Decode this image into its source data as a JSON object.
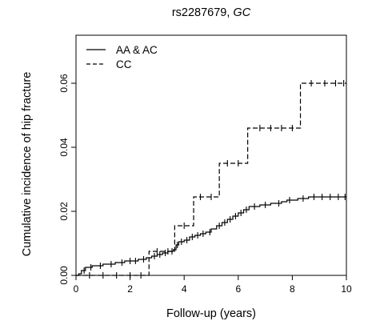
{
  "chart_data": {
    "type": "line",
    "step": true,
    "title_prefix": "rs2287679, ",
    "title_gene": "GC",
    "xlabel": "Follow-up (years)",
    "ylabel": "Cumulative incidence of hip fracture",
    "xlim": [
      0,
      10
    ],
    "ylim": [
      0,
      0.075
    ],
    "xticks": [
      0,
      2,
      4,
      6,
      8,
      10
    ],
    "xtick_labels": [
      "0",
      "2",
      "4",
      "6",
      "8",
      "10"
    ],
    "yticks": [
      0,
      0.02,
      0.04,
      0.06
    ],
    "ytick_labels": [
      "0.00",
      "0.02",
      "0.04",
      "0.06"
    ],
    "grid": false,
    "legend_position": "top-left",
    "series": [
      {
        "name": "AA & AC",
        "line_style": "solid",
        "color": "#000000",
        "x": [
          0,
          0.1,
          0.2,
          0.35,
          0.6,
          1.0,
          1.45,
          1.8,
          2.3,
          2.6,
          2.8,
          3.0,
          3.2,
          3.4,
          3.6,
          3.7,
          3.8,
          4.0,
          4.2,
          4.4,
          4.6,
          4.8,
          5.0,
          5.2,
          5.4,
          5.6,
          5.8,
          6.0,
          6.2,
          6.4,
          6.8,
          7.2,
          7.6,
          7.8,
          8.2,
          8.6,
          10.0
        ],
        "y": [
          0,
          0.0005,
          0.0015,
          0.0025,
          0.003,
          0.0035,
          0.004,
          0.0045,
          0.005,
          0.0055,
          0.006,
          0.0065,
          0.007,
          0.0075,
          0.008,
          0.0095,
          0.0105,
          0.011,
          0.012,
          0.0125,
          0.013,
          0.0135,
          0.0145,
          0.0155,
          0.0165,
          0.0175,
          0.0185,
          0.0195,
          0.0205,
          0.0215,
          0.022,
          0.0225,
          0.023,
          0.0235,
          0.024,
          0.0245,
          0.0245
        ],
        "censor_x": [
          0.3,
          0.55,
          0.9,
          1.3,
          1.7,
          2.0,
          2.2,
          2.5,
          2.9,
          3.1,
          3.3,
          3.55,
          3.75,
          3.9,
          4.1,
          4.3,
          4.5,
          4.7,
          4.95,
          5.3,
          5.5,
          5.7,
          5.9,
          6.1,
          6.3,
          6.6,
          7.0,
          7.5,
          7.9,
          8.4,
          8.8,
          9.1,
          9.4,
          9.7,
          9.95
        ]
      },
      {
        "name": "CC",
        "line_style": "dashed",
        "color": "#000000",
        "x": [
          0,
          2.7,
          3.65,
          4.35,
          5.3,
          6.35,
          8.3,
          10.0
        ],
        "y": [
          0,
          0.0075,
          0.0155,
          0.0245,
          0.035,
          0.046,
          0.06,
          0.06
        ],
        "censor_x": [
          0.5,
          1.0,
          1.5,
          2.0,
          2.4,
          3.0,
          3.4,
          4.0,
          4.6,
          5.0,
          5.6,
          6.0,
          6.8,
          7.2,
          7.6,
          8.0,
          8.7,
          9.2,
          9.6,
          9.9
        ]
      }
    ]
  }
}
